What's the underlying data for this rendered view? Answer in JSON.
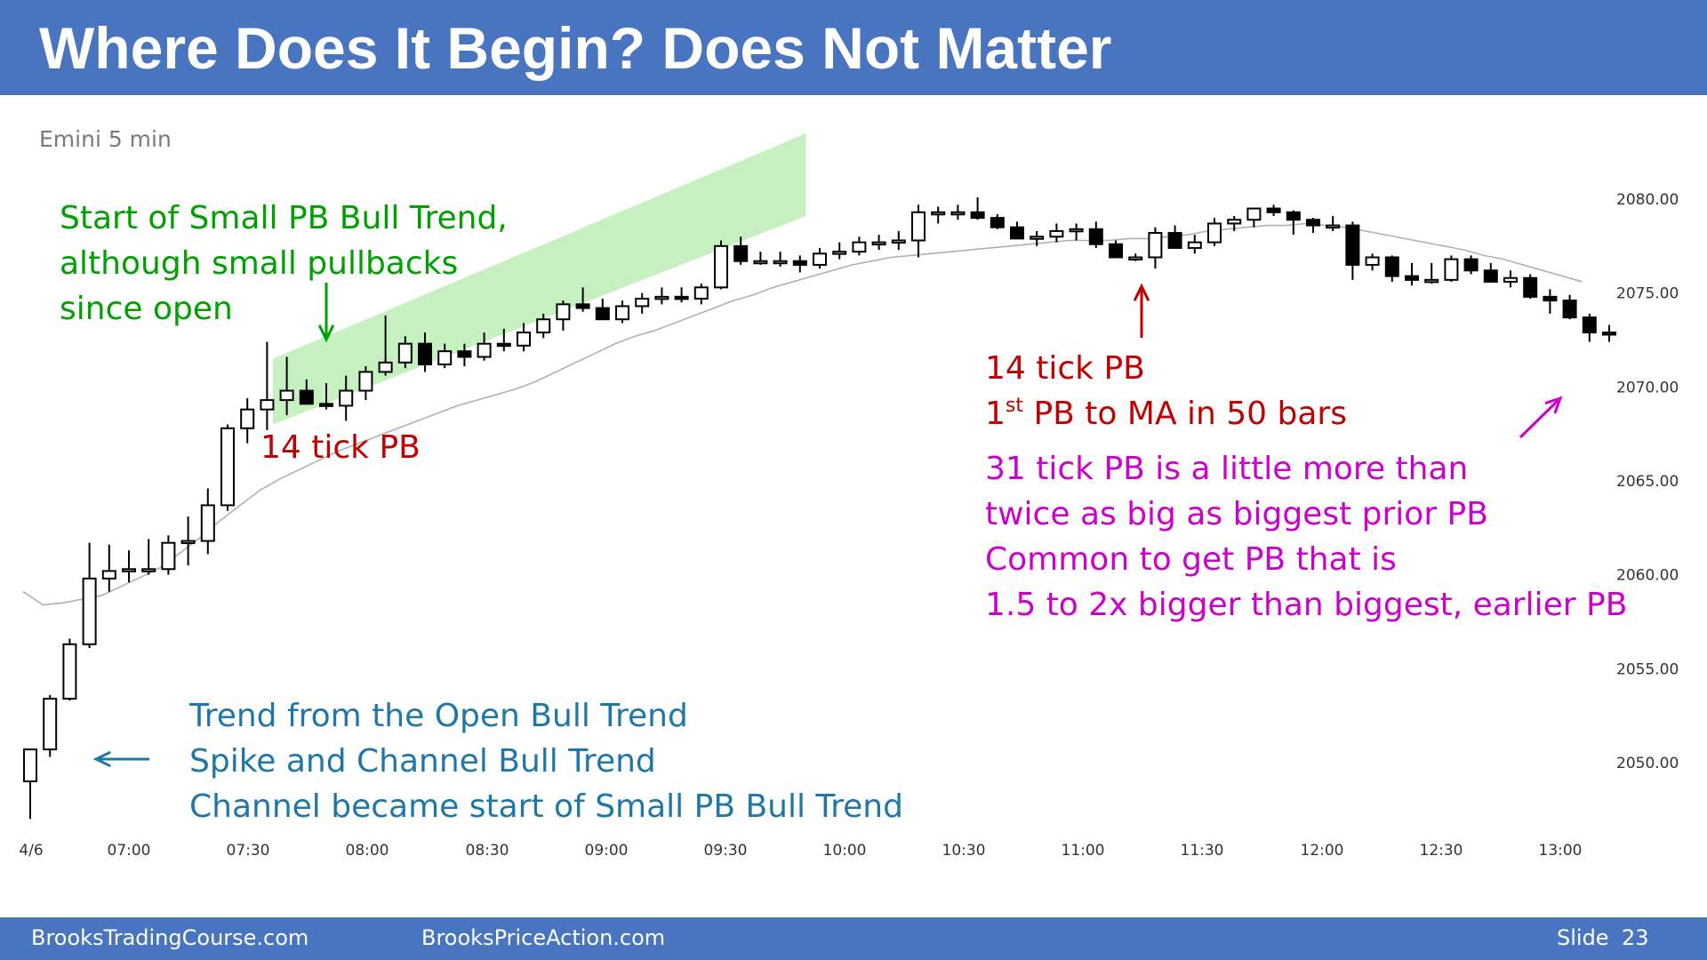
{
  "header": {
    "title_bold": "Where Does It Begin?",
    "title_rest": "Does Not Matter"
  },
  "chart_subtitle": "Emini 5 min",
  "annotations": {
    "start_small_pb": [
      "Start of Small PB Bull Trend,",
      "although small pullbacks",
      "since open"
    ],
    "pb_left": "14 tick PB",
    "pb_right": "14 tick PB",
    "ma_pb_prefix": "1",
    "ma_pb_sup": "st",
    "ma_pb_suffix": " PB to MA in 50 bars",
    "big_pb": [
      "31 tick PB is a little more than",
      "twice as big as biggest prior PB",
      "Common to get PB that is",
      "1.5 to 2x bigger than biggest, earlier PB"
    ],
    "trend_types": [
      "Trend from the Open Bull Trend",
      "Spike and Channel Bull Trend",
      "Channel became start of  Small PB Bull Trend"
    ]
  },
  "footer": {
    "left": "BrooksTradingCourse.com",
    "center": "BrooksPriceAction.com",
    "slide_label": "Slide",
    "slide_number": "23"
  },
  "colors": {
    "header_bg": "#4874c0",
    "channel_fill": "#c6f0bf",
    "ma_line": "#b0b0b0",
    "green_text": "#00a000",
    "red_text": "#c00000",
    "magenta_text": "#cc00cc",
    "blue_text": "#1f77a8"
  },
  "chart_data": {
    "type": "candlestick",
    "subtitle": "Emini 5 min",
    "x_tick_labels": [
      "4/6",
      "07:00",
      "07:30",
      "08:00",
      "08:30",
      "09:00",
      "09:30",
      "10:00",
      "10:30",
      "11:00",
      "11:30",
      "12:00",
      "12:30",
      "13:00"
    ],
    "y_tick_labels": [
      "2080.00",
      "2075.00",
      "2070.00",
      "2065.00",
      "2060.00",
      "2055.00",
      "2050.00"
    ],
    "y_ticks": [
      2080,
      2075,
      2070,
      2065,
      2060,
      2055,
      2050
    ],
    "ylim": [
      2047,
      2083.5
    ],
    "grid": false,
    "ohlc": [
      [
        2049,
        2050.7,
        2047.0,
        2050.7
      ],
      [
        2050.7,
        2053.6,
        2050.3,
        2053.4
      ],
      [
        2053.4,
        2056.6,
        2053.3,
        2056.3
      ],
      [
        2056.3,
        2061.7,
        2056.1,
        2059.8
      ],
      [
        2059.8,
        2061.6,
        2059.1,
        2060.2
      ],
      [
        2060.2,
        2061.3,
        2059.6,
        2060.3
      ],
      [
        2060.3,
        2061.9,
        2060.0,
        2060.3
      ],
      [
        2060.3,
        2062.1,
        2060.0,
        2061.7
      ],
      [
        2061.7,
        2063.1,
        2060.5,
        2061.8
      ],
      [
        2061.8,
        2064.6,
        2061.1,
        2063.7
      ],
      [
        2063.7,
        2068.0,
        2063.4,
        2067.8
      ],
      [
        2067.8,
        2069.4,
        2067.0,
        2068.8
      ],
      [
        2068.8,
        2072.4,
        2067.7,
        2069.3
      ],
      [
        2069.3,
        2071.6,
        2068.5,
        2069.8
      ],
      [
        2069.8,
        2070.4,
        2069.2,
        2069.1
      ],
      [
        2069.1,
        2070.2,
        2068.8,
        2069.0
      ],
      [
        2069.0,
        2070.6,
        2068.2,
        2069.8
      ],
      [
        2069.8,
        2071.1,
        2069.3,
        2070.8
      ],
      [
        2070.8,
        2073.8,
        2070.6,
        2071.3
      ],
      [
        2071.3,
        2072.7,
        2071.0,
        2072.3
      ],
      [
        2072.3,
        2072.9,
        2070.8,
        2071.2
      ],
      [
        2071.2,
        2072.3,
        2071.0,
        2071.9
      ],
      [
        2071.9,
        2072.3,
        2071.1,
        2071.6
      ],
      [
        2071.6,
        2072.9,
        2071.4,
        2072.3
      ],
      [
        2072.3,
        2073.1,
        2071.9,
        2072.2
      ],
      [
        2072.2,
        2073.4,
        2071.9,
        2072.9
      ],
      [
        2072.9,
        2073.9,
        2072.6,
        2073.6
      ],
      [
        2073.6,
        2074.6,
        2073.0,
        2074.4
      ],
      [
        2074.4,
        2075.3,
        2074.0,
        2074.2
      ],
      [
        2074.2,
        2074.7,
        2073.6,
        2073.6
      ],
      [
        2073.6,
        2074.6,
        2073.4,
        2074.3
      ],
      [
        2074.3,
        2075.0,
        2073.9,
        2074.7
      ],
      [
        2074.7,
        2075.3,
        2074.4,
        2074.8
      ],
      [
        2074.8,
        2075.3,
        2074.5,
        2074.7
      ],
      [
        2074.7,
        2075.5,
        2074.4,
        2075.3
      ],
      [
        2075.3,
        2077.8,
        2075.2,
        2077.5
      ],
      [
        2077.5,
        2078.0,
        2076.5,
        2076.7
      ],
      [
        2076.7,
        2077.2,
        2076.5,
        2076.7
      ],
      [
        2076.7,
        2077.2,
        2076.4,
        2076.7
      ],
      [
        2076.7,
        2077.0,
        2076.1,
        2076.5
      ],
      [
        2076.5,
        2077.4,
        2076.3,
        2077.1
      ],
      [
        2077.1,
        2077.7,
        2076.8,
        2077.2
      ],
      [
        2077.2,
        2078.0,
        2077.0,
        2077.7
      ],
      [
        2077.7,
        2078.1,
        2077.3,
        2077.7
      ],
      [
        2077.7,
        2078.3,
        2077.3,
        2077.8
      ],
      [
        2077.8,
        2079.7,
        2076.9,
        2079.3
      ],
      [
        2079.3,
        2079.6,
        2078.7,
        2079.3
      ],
      [
        2079.3,
        2079.7,
        2078.9,
        2079.3
      ],
      [
        2079.3,
        2080.1,
        2078.9,
        2079.0
      ],
      [
        2079.0,
        2079.2,
        2078.4,
        2078.5
      ],
      [
        2078.5,
        2078.8,
        2077.9,
        2077.9
      ],
      [
        2077.9,
        2078.3,
        2077.5,
        2078.0
      ],
      [
        2078.0,
        2078.7,
        2077.7,
        2078.3
      ],
      [
        2078.3,
        2078.7,
        2077.8,
        2078.4
      ],
      [
        2078.4,
        2078.8,
        2077.4,
        2077.6
      ],
      [
        2077.6,
        2077.8,
        2077.1,
        2076.9
      ],
      [
        2076.9,
        2077.1,
        2076.7,
        2076.9
      ],
      [
        2076.9,
        2078.5,
        2076.3,
        2078.2
      ],
      [
        2078.2,
        2078.6,
        2077.6,
        2077.4
      ],
      [
        2077.4,
        2078.1,
        2077.1,
        2077.7
      ],
      [
        2077.7,
        2079.0,
        2077.5,
        2078.7
      ],
      [
        2078.7,
        2079.1,
        2078.3,
        2078.9
      ],
      [
        2078.9,
        2079.3,
        2078.5,
        2079.5
      ],
      [
        2079.5,
        2079.7,
        2079.1,
        2079.3
      ],
      [
        2079.3,
        2079.4,
        2078.1,
        2078.9
      ],
      [
        2078.9,
        2079.0,
        2078.2,
        2078.6
      ],
      [
        2078.6,
        2079.1,
        2078.3,
        2078.6
      ],
      [
        2078.6,
        2078.8,
        2075.7,
        2076.5
      ],
      [
        2076.5,
        2077.1,
        2076.2,
        2076.9
      ],
      [
        2076.9,
        2077.0,
        2075.6,
        2075.9
      ],
      [
        2075.9,
        2076.6,
        2075.4,
        2075.7
      ],
      [
        2075.7,
        2076.6,
        2075.5,
        2075.7
      ],
      [
        2075.7,
        2077.0,
        2075.6,
        2076.8
      ],
      [
        2076.8,
        2077.0,
        2076.0,
        2076.2
      ],
      [
        2076.2,
        2076.6,
        2075.8,
        2075.6
      ],
      [
        2075.6,
        2076.2,
        2075.3,
        2075.8
      ],
      [
        2075.8,
        2076.0,
        2074.7,
        2074.8
      ],
      [
        2074.8,
        2075.2,
        2073.9,
        2074.6
      ],
      [
        2074.6,
        2074.9,
        2073.6,
        2073.7
      ],
      [
        2073.7,
        2073.9,
        2072.4,
        2072.9
      ],
      [
        2072.9,
        2073.3,
        2072.4,
        2072.8
      ]
    ],
    "moving_average": [
      2059.1,
      2058.4,
      2058.5,
      2058.7,
      2058.9,
      2059.4,
      2059.9,
      2060.4,
      2061.2,
      2062.0,
      2062.9,
      2063.7,
      2064.5,
      2065.1,
      2065.6,
      2066.1,
      2066.6,
      2067.0,
      2067.4,
      2067.8,
      2068.2,
      2068.6,
      2069.0,
      2069.3,
      2069.6,
      2069.9,
      2070.3,
      2070.8,
      2071.3,
      2071.8,
      2072.3,
      2072.7,
      2073.0,
      2073.4,
      2073.8,
      2074.2,
      2074.6,
      2074.9,
      2075.3,
      2075.6,
      2075.9,
      2076.2,
      2076.5,
      2076.7,
      2076.9,
      2077.0,
      2077.1,
      2077.2,
      2077.3,
      2077.4,
      2077.5,
      2077.6,
      2077.7,
      2077.8,
      2077.8,
      2077.8,
      2077.9,
      2077.9,
      2078.0,
      2078.1,
      2078.3,
      2078.4,
      2078.5,
      2078.6,
      2078.6,
      2078.7,
      2078.6,
      2078.5,
      2078.3,
      2078.1,
      2077.9,
      2077.7,
      2077.5,
      2077.3,
      2077.0,
      2076.8,
      2076.5,
      2076.2,
      2075.9,
      2075.6
    ]
  }
}
